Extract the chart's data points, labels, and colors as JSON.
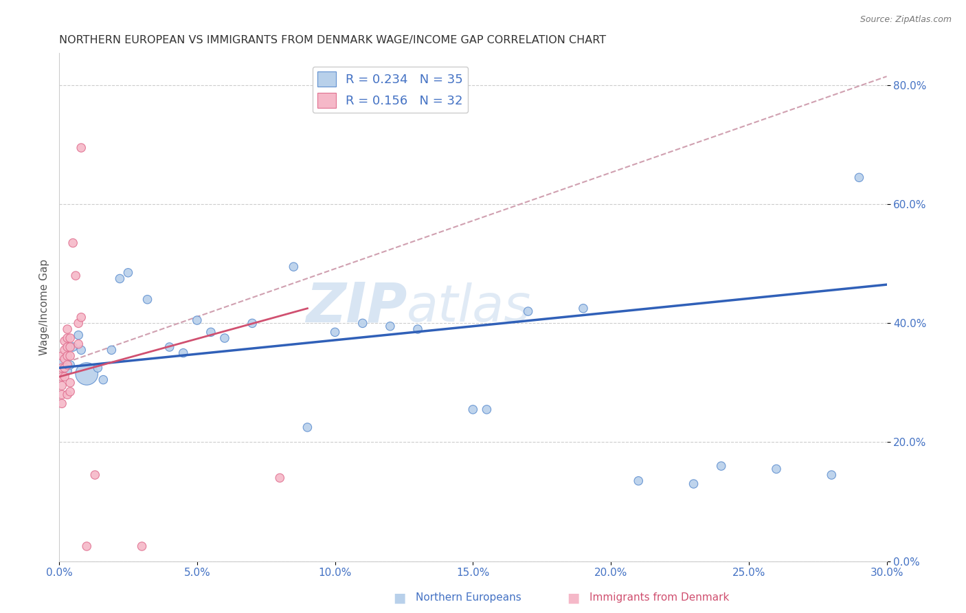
{
  "title": "NORTHERN EUROPEAN VS IMMIGRANTS FROM DENMARK WAGE/INCOME GAP CORRELATION CHART",
  "source": "Source: ZipAtlas.com",
  "ylabel": "Wage/Income Gap",
  "watermark": "ZIPatlas",
  "xlim": [
    0.0,
    0.3
  ],
  "ylim": [
    0.0,
    0.855
  ],
  "xticks": [
    0.0,
    0.05,
    0.1,
    0.15,
    0.2,
    0.25,
    0.3
  ],
  "yticks": [
    0.0,
    0.2,
    0.4,
    0.6,
    0.8
  ],
  "R_blue": 0.234,
  "N_blue": 35,
  "R_pink": 0.156,
  "N_pink": 32,
  "blue_color": "#b8d0ea",
  "pink_color": "#f5b8c8",
  "blue_edge_color": "#6090d0",
  "pink_edge_color": "#e07090",
  "blue_line_color": "#3060b8",
  "pink_line_color": "#d05070",
  "ref_line_color": "#d0a0b0",
  "blue_dots": [
    [
      0.001,
      0.335
    ],
    [
      0.003,
      0.32
    ],
    [
      0.004,
      0.33
    ],
    [
      0.005,
      0.36
    ],
    [
      0.007,
      0.38
    ],
    [
      0.008,
      0.355
    ],
    [
      0.01,
      0.315
    ],
    [
      0.014,
      0.325
    ],
    [
      0.016,
      0.305
    ],
    [
      0.019,
      0.355
    ],
    [
      0.022,
      0.475
    ],
    [
      0.025,
      0.485
    ],
    [
      0.032,
      0.44
    ],
    [
      0.04,
      0.36
    ],
    [
      0.045,
      0.35
    ],
    [
      0.05,
      0.405
    ],
    [
      0.055,
      0.385
    ],
    [
      0.06,
      0.375
    ],
    [
      0.07,
      0.4
    ],
    [
      0.085,
      0.495
    ],
    [
      0.09,
      0.225
    ],
    [
      0.1,
      0.385
    ],
    [
      0.11,
      0.4
    ],
    [
      0.12,
      0.395
    ],
    [
      0.13,
      0.39
    ],
    [
      0.15,
      0.255
    ],
    [
      0.155,
      0.255
    ],
    [
      0.17,
      0.42
    ],
    [
      0.19,
      0.425
    ],
    [
      0.21,
      0.135
    ],
    [
      0.23,
      0.13
    ],
    [
      0.24,
      0.16
    ],
    [
      0.26,
      0.155
    ],
    [
      0.28,
      0.145
    ],
    [
      0.29,
      0.645
    ]
  ],
  "blue_sizes": [
    80,
    80,
    80,
    80,
    80,
    80,
    550,
    80,
    80,
    80,
    80,
    80,
    80,
    80,
    80,
    80,
    80,
    80,
    80,
    80,
    80,
    80,
    80,
    80,
    80,
    80,
    80,
    80,
    80,
    80,
    80,
    80,
    80,
    80,
    80
  ],
  "pink_dots": [
    [
      0.001,
      0.345
    ],
    [
      0.001,
      0.325
    ],
    [
      0.001,
      0.31
    ],
    [
      0.001,
      0.295
    ],
    [
      0.001,
      0.28
    ],
    [
      0.001,
      0.265
    ],
    [
      0.002,
      0.37
    ],
    [
      0.002,
      0.355
    ],
    [
      0.002,
      0.34
    ],
    [
      0.002,
      0.325
    ],
    [
      0.002,
      0.31
    ],
    [
      0.003,
      0.39
    ],
    [
      0.003,
      0.375
    ],
    [
      0.003,
      0.36
    ],
    [
      0.003,
      0.345
    ],
    [
      0.003,
      0.33
    ],
    [
      0.003,
      0.28
    ],
    [
      0.004,
      0.375
    ],
    [
      0.004,
      0.36
    ],
    [
      0.004,
      0.345
    ],
    [
      0.004,
      0.3
    ],
    [
      0.004,
      0.285
    ],
    [
      0.005,
      0.535
    ],
    [
      0.006,
      0.48
    ],
    [
      0.007,
      0.4
    ],
    [
      0.007,
      0.365
    ],
    [
      0.008,
      0.41
    ],
    [
      0.008,
      0.695
    ],
    [
      0.01,
      0.025
    ],
    [
      0.013,
      0.145
    ],
    [
      0.03,
      0.025
    ],
    [
      0.08,
      0.14
    ]
  ],
  "pink_sizes": [
    80,
    80,
    80,
    80,
    80,
    80,
    80,
    80,
    80,
    80,
    80,
    80,
    80,
    80,
    80,
    80,
    80,
    80,
    80,
    80,
    80,
    80,
    80,
    80,
    80,
    80,
    80,
    80,
    80,
    80,
    80,
    80
  ],
  "blue_trend_x": [
    0.0,
    0.3
  ],
  "blue_trend_y": [
    0.325,
    0.465
  ],
  "pink_trend_x": [
    0.0,
    0.09
  ],
  "pink_trend_y": [
    0.31,
    0.425
  ],
  "ref_line_x": [
    0.0,
    0.3
  ],
  "ref_line_y": [
    0.33,
    0.815
  ]
}
